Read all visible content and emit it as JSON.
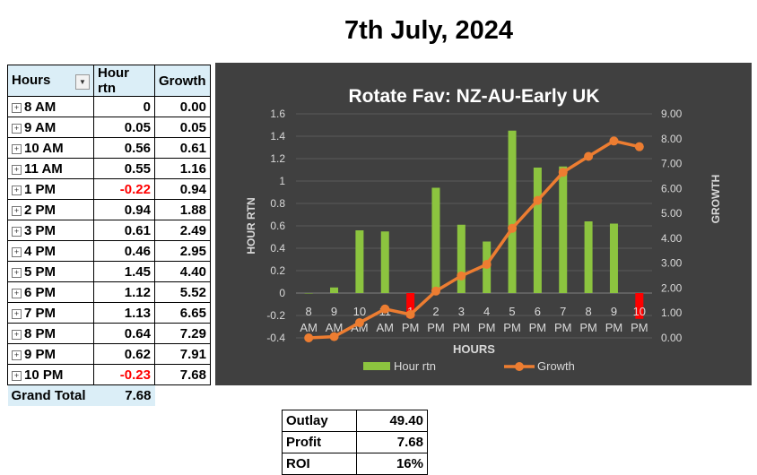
{
  "page_title": "7th July, 2024",
  "pivot": {
    "headers": {
      "hours": "Hours",
      "rtn": "Hour rtn",
      "growth": "Growth"
    },
    "rows": [
      {
        "hours": "8 AM",
        "rtn": "0",
        "growth": "0.00",
        "neg": false
      },
      {
        "hours": "9 AM",
        "rtn": "0.05",
        "growth": "0.05",
        "neg": false
      },
      {
        "hours": "10 AM",
        "rtn": "0.56",
        "growth": "0.61",
        "neg": false
      },
      {
        "hours": "11 AM",
        "rtn": "0.55",
        "growth": "1.16",
        "neg": false
      },
      {
        "hours": "1 PM",
        "rtn": "-0.22",
        "growth": "0.94",
        "neg": true
      },
      {
        "hours": "2 PM",
        "rtn": "0.94",
        "growth": "1.88",
        "neg": false
      },
      {
        "hours": "3 PM",
        "rtn": "0.61",
        "growth": "2.49",
        "neg": false
      },
      {
        "hours": "4 PM",
        "rtn": "0.46",
        "growth": "2.95",
        "neg": false
      },
      {
        "hours": "5 PM",
        "rtn": "1.45",
        "growth": "4.40",
        "neg": false
      },
      {
        "hours": "6 PM",
        "rtn": "1.12",
        "growth": "5.52",
        "neg": false
      },
      {
        "hours": "7 PM",
        "rtn": "1.13",
        "growth": "6.65",
        "neg": false
      },
      {
        "hours": "8 PM",
        "rtn": "0.64",
        "growth": "7.29",
        "neg": false
      },
      {
        "hours": "9 PM",
        "rtn": "0.62",
        "growth": "7.91",
        "neg": false
      },
      {
        "hours": "10 PM",
        "rtn": "-0.23",
        "growth": "7.68",
        "neg": true
      }
    ],
    "total": {
      "label": "Grand Total",
      "rtn": "7.68"
    }
  },
  "summary": [
    {
      "label": "Outlay",
      "value": "49.40"
    },
    {
      "label": "Profit",
      "value": "7.68"
    },
    {
      "label": "ROI",
      "value": "16%"
    }
  ],
  "chart_data": {
    "type": "bar",
    "title": "Rotate Fav: NZ-AU-Early UK",
    "xlabel": "HOURS",
    "ylabel": "HOUR RTN",
    "y2label": "GROWTH",
    "categories": [
      [
        "8",
        "AM"
      ],
      [
        "9",
        "AM"
      ],
      [
        "10",
        "AM"
      ],
      [
        "11",
        "AM"
      ],
      [
        "1",
        "PM"
      ],
      [
        "2",
        "PM"
      ],
      [
        "3",
        "PM"
      ],
      [
        "4",
        "PM"
      ],
      [
        "5",
        "PM"
      ],
      [
        "6",
        "PM"
      ],
      [
        "7",
        "PM"
      ],
      [
        "8",
        "PM"
      ],
      [
        "9",
        "PM"
      ],
      [
        "10",
        "PM"
      ]
    ],
    "series": [
      {
        "name": "Hour rtn",
        "type": "bar",
        "axis": "left",
        "values": [
          0,
          0.05,
          0.56,
          0.55,
          -0.22,
          0.94,
          0.61,
          0.46,
          1.45,
          1.12,
          1.13,
          0.64,
          0.62,
          -0.23
        ],
        "color": "#8cc43f",
        "negative_color": "#ff0000"
      },
      {
        "name": "Growth",
        "type": "line",
        "axis": "right",
        "values": [
          0.0,
          0.05,
          0.61,
          1.16,
          0.94,
          1.88,
          2.49,
          2.95,
          4.4,
          5.52,
          6.65,
          7.29,
          7.91,
          7.68
        ],
        "color": "#ed7d31"
      }
    ],
    "ylim": [
      -0.4,
      1.6
    ],
    "yticks": [
      "-0.4",
      "-0.2",
      "0",
      "0.2",
      "0.4",
      "0.6",
      "0.8",
      "1",
      "1.2",
      "1.4",
      "1.6"
    ],
    "y2lim": [
      0,
      9
    ],
    "y2ticks": [
      "0.00",
      "1.00",
      "2.00",
      "3.00",
      "4.00",
      "5.00",
      "6.00",
      "7.00",
      "8.00",
      "9.00"
    ],
    "grid": true,
    "legend": "bottom",
    "background": "#404040"
  }
}
